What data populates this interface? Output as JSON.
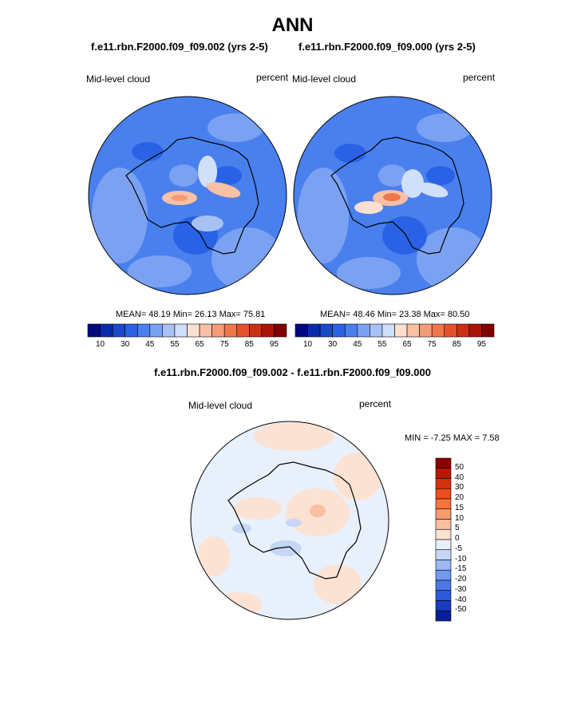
{
  "title": "ANN",
  "panels": [
    {
      "subtitle": "f.e11.rbn.F2000.f09_f09.002 (yrs 2-5)",
      "left_label": "Mid-level cloud",
      "right_label": "percent",
      "stats": "MEAN=  48.19  Min=  26.13  Max=  75.81"
    },
    {
      "subtitle": "f.e11.rbn.F2000.f09_f09.000 (yrs 2-5)",
      "left_label": "Mid-level cloud",
      "right_label": "percent",
      "stats": "MEAN=  48.46  Min=  23.38  Max=  80.50"
    },
    {
      "subtitle": "f.e11.rbn.F2000.f09_f09.002 - f.e11.rbn.F2000.f09_f09.000",
      "left_label": "Mid-level cloud",
      "right_label": "percent",
      "stats": "MIN =  -7.25 MAX =   7.58"
    }
  ],
  "colorbar_abs": {
    "colors": [
      "#000b80",
      "#0c2ba8",
      "#1c48cc",
      "#2a62e6",
      "#4a80ee",
      "#7ba2f2",
      "#a8c1f5",
      "#d0dffa",
      "#fbe0d0",
      "#f8c0a4",
      "#f59b77",
      "#f0764c",
      "#e4522d",
      "#cc2f13",
      "#a91608",
      "#800000"
    ],
    "tick_labels": [
      "10",
      "30",
      "45",
      "55",
      "65",
      "75",
      "85",
      "95"
    ]
  },
  "colorbar_diff": {
    "colors": [
      "#8b0000",
      "#b51a05",
      "#d63210",
      "#ef4d1e",
      "#f5733f",
      "#f79a70",
      "#f8bfa1",
      "#fbe2d3",
      "#e8f0fb",
      "#c5d6f6",
      "#9cb8f2",
      "#7398ee",
      "#4e77e8",
      "#2f58dc",
      "#1a3cc0",
      "#0a1f96"
    ],
    "tick_labels": [
      "50",
      "40",
      "30",
      "20",
      "15",
      "10",
      "5",
      "0",
      "-5",
      "-10",
      "-15",
      "-20",
      "-30",
      "-40",
      "-50"
    ]
  },
  "chart_data": [
    {
      "type": "heatmap",
      "title": "f.e11.rbn.F2000.f09_f09.002 (yrs 2-5)",
      "variable": "Mid-level cloud",
      "units": "percent",
      "projection": "south polar stereographic",
      "mean": 48.19,
      "min": 26.13,
      "max": 75.81,
      "levels": [
        10,
        20,
        30,
        35,
        40,
        45,
        50,
        55,
        60,
        65,
        70,
        75,
        80,
        85,
        90,
        95
      ]
    },
    {
      "type": "heatmap",
      "title": "f.e11.rbn.F2000.f09_f09.000 (yrs 2-5)",
      "variable": "Mid-level cloud",
      "units": "percent",
      "projection": "south polar stereographic",
      "mean": 48.46,
      "min": 23.38,
      "max": 80.5,
      "levels": [
        10,
        20,
        30,
        35,
        40,
        45,
        50,
        55,
        60,
        65,
        70,
        75,
        80,
        85,
        90,
        95
      ]
    },
    {
      "type": "heatmap",
      "title": "f.e11.rbn.F2000.f09_f09.002 - f.e11.rbn.F2000.f09_f09.000",
      "variable": "Mid-level cloud",
      "units": "percent",
      "projection": "south polar stereographic",
      "min": -7.25,
      "max": 7.58,
      "levels": [
        -50,
        -40,
        -30,
        -20,
        -15,
        -10,
        -5,
        0,
        5,
        10,
        15,
        20,
        30,
        40,
        50
      ]
    }
  ]
}
